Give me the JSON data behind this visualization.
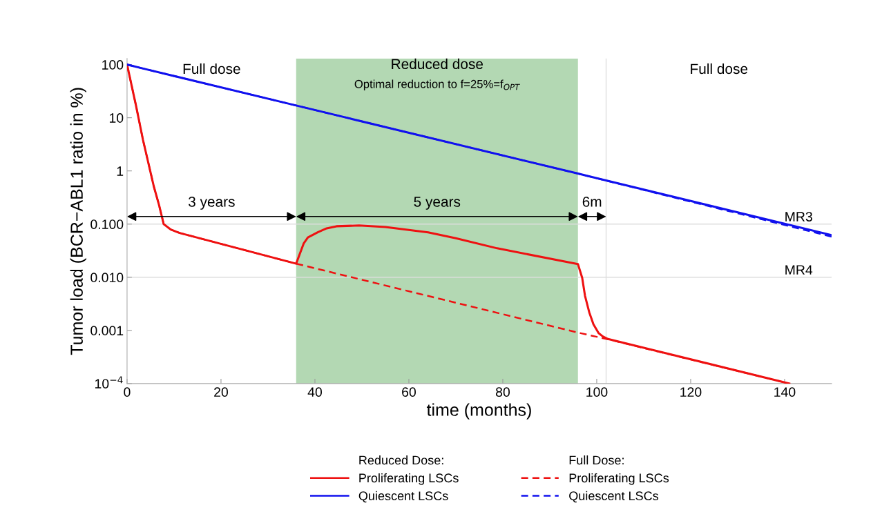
{
  "chart_data": {
    "type": "line",
    "xlabel": "time (months)",
    "ylabel": "Tumor load (BCR−ABL1 ratio in %)",
    "log": "y",
    "xlim": [
      0,
      150
    ],
    "xticks": [
      0,
      20,
      40,
      60,
      80,
      100,
      120,
      140
    ],
    "ylim": [
      0.0001,
      130
    ],
    "yticks": [
      {
        "value": 100,
        "label": "100"
      },
      {
        "value": 10,
        "label": "10"
      },
      {
        "value": 1,
        "label": "1"
      },
      {
        "value": 0.1,
        "label": "0.100"
      },
      {
        "value": 0.01,
        "label": "0.010"
      },
      {
        "value": 0.001,
        "label": "0.001"
      },
      {
        "value": 0.0001,
        "label": "10$^{−4}$"
      }
    ],
    "grid": false,
    "legend": "bottom",
    "series": [
      {
        "name": "Proliferating LSCs",
        "color": "#ee1111",
        "line_style": "solid",
        "x": [
          0,
          1.9,
          3.4,
          5.7,
          6.8,
          7.8,
          9.3,
          11.2,
          36,
          37.6,
          38.5,
          40.6,
          42.5,
          44.6,
          49.4,
          55,
          64.1,
          70,
          78.8,
          96,
          96.9,
          97.5,
          98.4,
          99.3,
          100.4,
          101.3,
          102.4,
          141
        ],
        "values": [
          100,
          17,
          3.8,
          0.51,
          0.23,
          0.1,
          0.079,
          0.068,
          0.018,
          0.043,
          0.056,
          0.07,
          0.083,
          0.091,
          0.094,
          0.088,
          0.07,
          0.054,
          0.035,
          0.0177,
          0.0098,
          0.0045,
          0.0022,
          0.0013,
          0.00089,
          0.00077,
          0.00069,
          0.0001
        ]
      },
      {
        "name": "Quiescent LSCs",
        "color": "#1111ee",
        "line_style": "solid",
        "x": [
          0,
          3,
          36,
          96,
          150
        ],
        "values": [
          100,
          86,
          17,
          0.89,
          0.062
        ]
      },
      {
        "name": "Proliferating LSCs",
        "color": "#ee1111",
        "line_style": "dashed",
        "x": [
          0,
          1.9,
          3.4,
          5.7,
          6.8,
          7.8,
          9.3,
          11.2,
          36,
          96,
          102.4,
          141
        ],
        "values": [
          100,
          17,
          3.8,
          0.51,
          0.23,
          0.1,
          0.079,
          0.068,
          0.018,
          0.00091,
          0.00068,
          0.0001
        ]
      },
      {
        "name": "Quiescent LSCs",
        "color": "#1111ee",
        "line_style": "dashed",
        "x": [
          0,
          3,
          36,
          96,
          150
        ],
        "values": [
          100,
          86,
          17,
          0.89,
          0.058
        ]
      }
    ],
    "bands": [
      {
        "axis": "x",
        "from": 36,
        "to": 96,
        "label": "Reduced dose",
        "color": "#b3d8b3"
      }
    ],
    "ref_lines": [
      {
        "axis": "y",
        "value": 0.1,
        "label": "MR3",
        "color": "#dddddd"
      },
      {
        "axis": "y",
        "value": 0.01,
        "label": "MR4",
        "color": "#dddddd"
      },
      {
        "axis": "x",
        "value": 102,
        "label": null,
        "color": "#dddddd"
      }
    ],
    "annotations": [
      "Reduced Dose:",
      "Full Dose:",
      "Full dose",
      "Optimal reduction to f=25%=f$_{OPT}$",
      "Full dose",
      "3 years",
      "5 years",
      "6m"
    ]
  }
}
